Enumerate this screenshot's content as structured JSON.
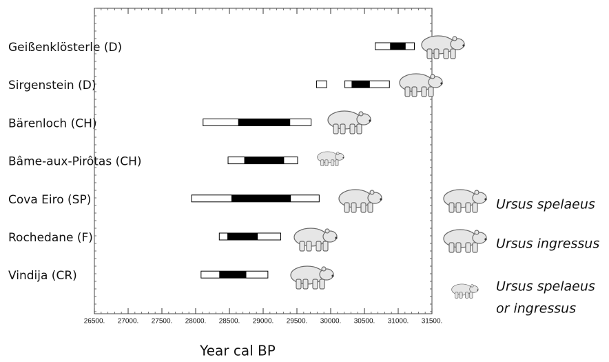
{
  "chart_data": {
    "type": "range",
    "xlabel": "Year cal BP",
    "xlim": [
      26500,
      31500
    ],
    "xticks": [
      {
        "value": 26500,
        "label": "26500."
      },
      {
        "value": 27000,
        "label": "27000."
      },
      {
        "value": 27500,
        "label": "27500."
      },
      {
        "value": 28000,
        "label": "28000."
      },
      {
        "value": 28500,
        "label": "28500."
      },
      {
        "value": 29000,
        "label": "29000."
      },
      {
        "value": 29500,
        "label": "29500."
      },
      {
        "value": 30000,
        "label": "30000."
      },
      {
        "value": 30500,
        "label": "30500."
      },
      {
        "value": 31000,
        "label": "31000."
      },
      {
        "value": 31500,
        "label": "31500."
      }
    ],
    "sites": [
      {
        "name": "Geißenklösterle (D)",
        "outer": [
          [
            30660,
            31240
          ]
        ],
        "inner": [
          30880,
          31110
        ]
      },
      {
        "name": "Sirgenstein (D)",
        "outer": [
          [
            29790,
            29940
          ],
          [
            30210,
            30870
          ]
        ],
        "inner": [
          30310,
          30580
        ]
      },
      {
        "name": "Bärenloch (CH)",
        "outer": [
          [
            28110,
            29710
          ]
        ],
        "inner": [
          28630,
          29400
        ]
      },
      {
        "name": "Bâme-aux-Pirôtas (CH)",
        "outer": [
          [
            28480,
            29510
          ]
        ],
        "inner": [
          28720,
          29310
        ]
      },
      {
        "name": "Cova Eiro (SP)",
        "outer": [
          [
            27940,
            29830
          ]
        ],
        "inner": [
          28530,
          29410
        ]
      },
      {
        "name": "Rochedane (F)",
        "outer": [
          [
            28350,
            29260
          ]
        ],
        "inner": [
          28470,
          28920
        ]
      },
      {
        "name": "Vindija (CR)",
        "outer": [
          [
            28080,
            29070
          ]
        ],
        "inner": [
          28350,
          28750
        ]
      }
    ],
    "legend": [
      [
        "Ursus spelaeus"
      ],
      [
        "Ursus ingressus"
      ],
      [
        "Ursus spelaeus",
        "or ingressus"
      ]
    ]
  }
}
